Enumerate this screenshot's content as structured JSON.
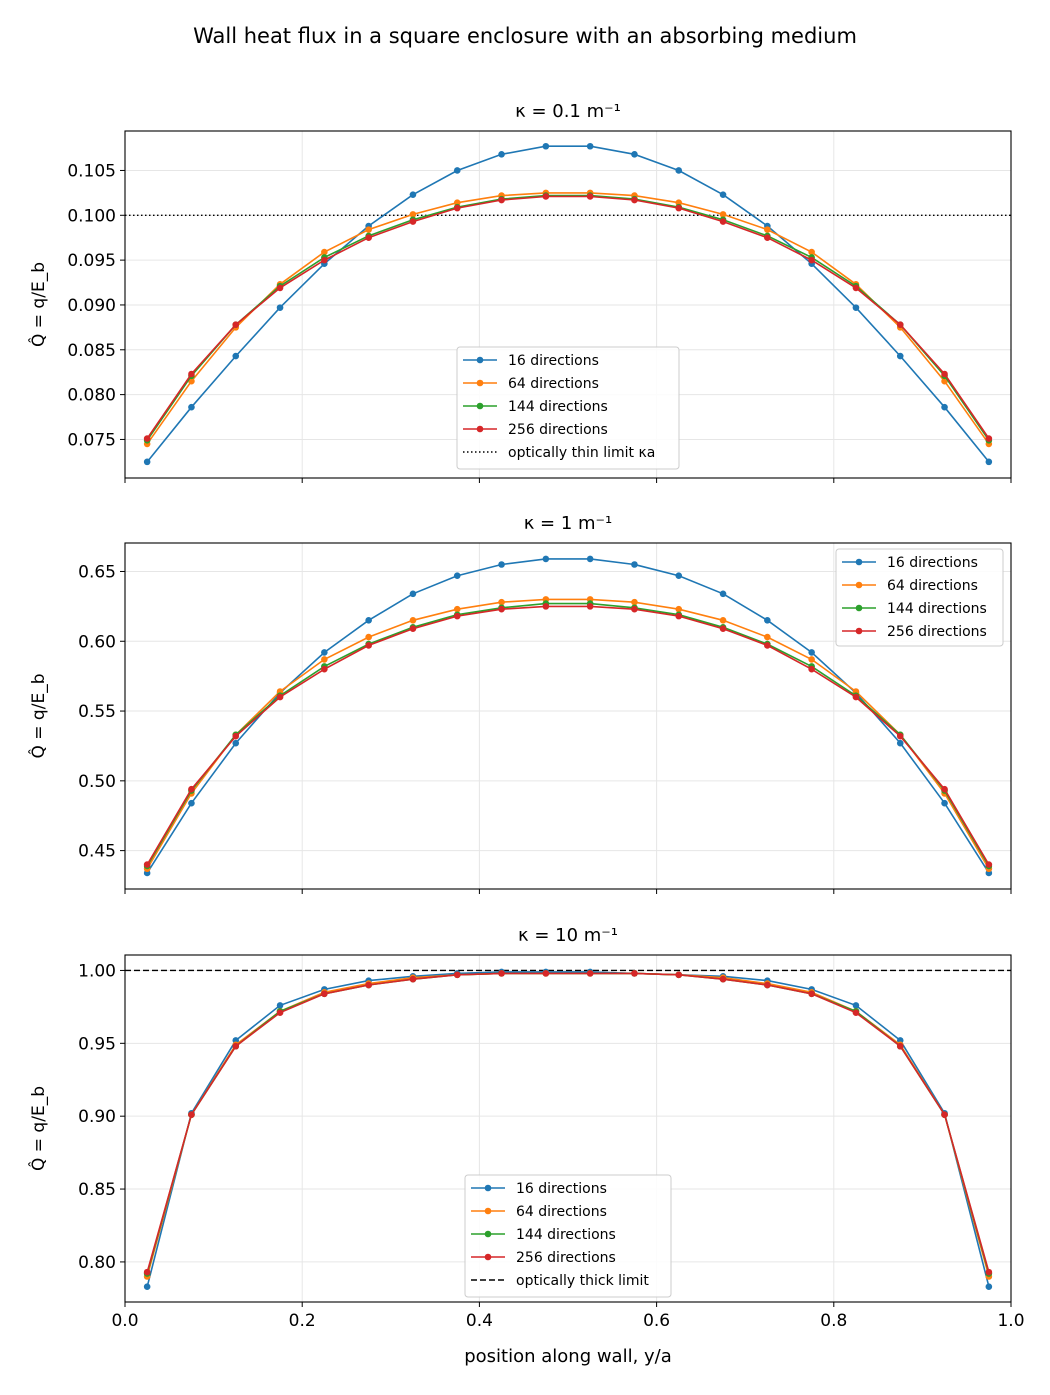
{
  "figure": {
    "suptitle": "Wall heat flux in a square enclosure with an absorbing medium",
    "xlabel": "position along wall,  y/a",
    "ylabel": "Q̂ = q/E_b"
  },
  "colors": {
    "16 directions": "#1f77b4",
    "64 directions": "#ff7f0e",
    "144 directions": "#2ca02c",
    "256 directions": "#d62728"
  },
  "chart_data": [
    {
      "type": "line",
      "title": "κ = 0.1 m⁻¹",
      "xlabel": "",
      "ylabel": "Q̂ = q/E_b",
      "xlim": [
        0.0,
        1.0
      ],
      "ylim": [
        0.0707,
        0.1094
      ],
      "yticks": [
        0.075,
        0.08,
        0.085,
        0.09,
        0.095,
        0.1,
        0.105
      ],
      "ytick_labels": [
        "0.075",
        "0.080",
        "0.085",
        "0.090",
        "0.095",
        "0.100",
        "0.105"
      ],
      "xticks": [
        0.0,
        0.2,
        0.4,
        0.6,
        0.8,
        1.0
      ],
      "xtick_labels": [],
      "grid": true,
      "legend": "lower center",
      "x": [
        0.025,
        0.075,
        0.125,
        0.175,
        0.225,
        0.275,
        0.325,
        0.375,
        0.425,
        0.475,
        0.525,
        0.575,
        0.625,
        0.675,
        0.725,
        0.775,
        0.825,
        0.875,
        0.925,
        0.975
      ],
      "series": [
        {
          "name": "16 directions",
          "values": [
            0.0725,
            0.0786,
            0.0843,
            0.0897,
            0.0946,
            0.0988,
            0.1023,
            0.105,
            0.1068,
            0.1077,
            0.1077,
            0.1068,
            0.105,
            0.1023,
            0.0988,
            0.0946,
            0.0897,
            0.0843,
            0.0786,
            0.0725
          ]
        },
        {
          "name": "64 directions",
          "values": [
            0.0745,
            0.0815,
            0.0875,
            0.0923,
            0.0959,
            0.0984,
            0.1001,
            0.1014,
            0.1022,
            0.1025,
            0.1025,
            0.1022,
            0.1014,
            0.1001,
            0.0984,
            0.0959,
            0.0923,
            0.0875,
            0.0815,
            0.0745
          ]
        },
        {
          "name": "144 directions",
          "values": [
            0.0749,
            0.0821,
            0.0878,
            0.0921,
            0.0953,
            0.0977,
            0.0995,
            0.1009,
            0.1018,
            0.1022,
            0.1022,
            0.1018,
            0.1009,
            0.0995,
            0.0977,
            0.0953,
            0.0921,
            0.0878,
            0.0821,
            0.0749
          ]
        },
        {
          "name": "256 directions",
          "values": [
            0.0751,
            0.0823,
            0.0878,
            0.0919,
            0.095,
            0.0975,
            0.0993,
            0.1008,
            0.1017,
            0.1021,
            0.1021,
            0.1017,
            0.1008,
            0.0993,
            0.0975,
            0.095,
            0.0919,
            0.0878,
            0.0823,
            0.0751
          ]
        }
      ],
      "reference": {
        "name": "optically thin limit κa",
        "value": 0.1,
        "style": "dotted"
      }
    },
    {
      "type": "line",
      "title": "κ = 1 m⁻¹",
      "xlabel": "",
      "ylabel": "Q̂ = q/E_b",
      "xlim": [
        0.0,
        1.0
      ],
      "ylim": [
        0.4225,
        0.6704
      ],
      "yticks": [
        0.45,
        0.5,
        0.55,
        0.6,
        0.65
      ],
      "ytick_labels": [
        "0.45",
        "0.50",
        "0.55",
        "0.60",
        "0.65"
      ],
      "xticks": [
        0.0,
        0.2,
        0.4,
        0.6,
        0.8,
        1.0
      ],
      "xtick_labels": [],
      "grid": true,
      "legend": "upper right",
      "x": [
        0.025,
        0.075,
        0.125,
        0.175,
        0.225,
        0.275,
        0.325,
        0.375,
        0.425,
        0.475,
        0.525,
        0.575,
        0.625,
        0.675,
        0.725,
        0.775,
        0.825,
        0.875,
        0.925,
        0.975
      ],
      "series": [
        {
          "name": "16 directions",
          "values": [
            0.434,
            0.484,
            0.527,
            0.563,
            0.592,
            0.615,
            0.634,
            0.647,
            0.655,
            0.659,
            0.659,
            0.655,
            0.647,
            0.634,
            0.615,
            0.592,
            0.563,
            0.527,
            0.484,
            0.434
          ]
        },
        {
          "name": "64 directions",
          "values": [
            0.437,
            0.491,
            0.533,
            0.564,
            0.587,
            0.603,
            0.615,
            0.623,
            0.628,
            0.63,
            0.63,
            0.628,
            0.623,
            0.615,
            0.603,
            0.587,
            0.564,
            0.533,
            0.491,
            0.437
          ]
        },
        {
          "name": "144 directions",
          "values": [
            0.439,
            0.493,
            0.533,
            0.561,
            0.582,
            0.598,
            0.61,
            0.619,
            0.624,
            0.627,
            0.627,
            0.624,
            0.619,
            0.61,
            0.598,
            0.582,
            0.561,
            0.533,
            0.493,
            0.439
          ]
        },
        {
          "name": "256 directions",
          "values": [
            0.44,
            0.494,
            0.532,
            0.56,
            0.58,
            0.597,
            0.609,
            0.618,
            0.623,
            0.625,
            0.625,
            0.623,
            0.618,
            0.609,
            0.597,
            0.58,
            0.56,
            0.532,
            0.494,
            0.44
          ]
        }
      ]
    },
    {
      "type": "line",
      "title": "κ = 10 m⁻¹",
      "xlabel": "position along wall,  y/a",
      "ylabel": "Q̂ = q/E_b",
      "xlim": [
        0.0,
        1.0
      ],
      "ylim": [
        0.7725,
        1.0106
      ],
      "yticks": [
        0.8,
        0.85,
        0.9,
        0.95,
        1.0
      ],
      "ytick_labels": [
        "0.80",
        "0.85",
        "0.90",
        "0.95",
        "1.00"
      ],
      "xticks": [
        0.0,
        0.2,
        0.4,
        0.6,
        0.8,
        1.0
      ],
      "xtick_labels": [
        "0.0",
        "0.2",
        "0.4",
        "0.6",
        "0.8",
        "1.0"
      ],
      "grid": true,
      "legend": "lower center",
      "x": [
        0.025,
        0.075,
        0.125,
        0.175,
        0.225,
        0.275,
        0.325,
        0.375,
        0.425,
        0.475,
        0.525,
        0.575,
        0.625,
        0.675,
        0.725,
        0.775,
        0.825,
        0.875,
        0.925,
        0.975
      ],
      "series": [
        {
          "name": "16 directions",
          "values": [
            0.783,
            0.902,
            0.952,
            0.976,
            0.987,
            0.993,
            0.996,
            0.998,
            0.999,
            0.999,
            0.999,
            0.998,
            0.997,
            0.996,
            0.993,
            0.987,
            0.976,
            0.952,
            0.902,
            0.783
          ]
        },
        {
          "name": "64 directions",
          "values": [
            0.79,
            0.901,
            0.949,
            0.972,
            0.985,
            0.991,
            0.995,
            0.997,
            0.998,
            0.998,
            0.998,
            0.998,
            0.997,
            0.995,
            0.991,
            0.985,
            0.972,
            0.949,
            0.901,
            0.79
          ]
        },
        {
          "name": "144 directions",
          "values": [
            0.792,
            0.901,
            0.948,
            0.972,
            0.984,
            0.99,
            0.994,
            0.997,
            0.998,
            0.998,
            0.998,
            0.998,
            0.997,
            0.994,
            0.99,
            0.984,
            0.972,
            0.948,
            0.901,
            0.792
          ]
        },
        {
          "name": "256 directions",
          "values": [
            0.793,
            0.901,
            0.948,
            0.971,
            0.984,
            0.99,
            0.994,
            0.997,
            0.998,
            0.998,
            0.998,
            0.998,
            0.997,
            0.994,
            0.99,
            0.984,
            0.971,
            0.948,
            0.901,
            0.793
          ]
        }
      ],
      "reference": {
        "name": "optically thick limit",
        "value": 1.0,
        "style": "dashed"
      }
    }
  ]
}
